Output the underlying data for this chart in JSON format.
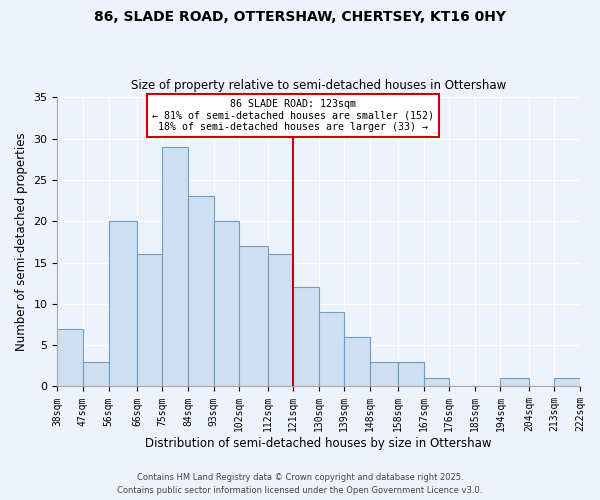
{
  "title": "86, SLADE ROAD, OTTERSHAW, CHERTSEY, KT16 0HY",
  "subtitle": "Size of property relative to semi-detached houses in Ottershaw",
  "xlabel": "Distribution of semi-detached houses by size in Ottershaw",
  "ylabel": "Number of semi-detached properties",
  "bar_edges": [
    38,
    47,
    56,
    66,
    75,
    84,
    93,
    102,
    112,
    121,
    130,
    139,
    148,
    158,
    167,
    176,
    185,
    194,
    204,
    213,
    222
  ],
  "bar_heights": [
    7,
    3,
    20,
    16,
    29,
    23,
    20,
    17,
    16,
    12,
    9,
    6,
    3,
    3,
    1,
    0,
    0,
    1,
    0,
    1
  ],
  "bar_color": "#cfdff0",
  "bar_edge_color": "#6b9ec8",
  "vline_x": 121,
  "vline_color": "#cc0000",
  "annotation_lines": [
    "86 SLADE ROAD: 123sqm",
    "← 81% of semi-detached houses are smaller (152)",
    "18% of semi-detached houses are larger (33) →"
  ],
  "annotation_box_edge": "#cc0000",
  "ylim": [
    0,
    35
  ],
  "yticks": [
    0,
    5,
    10,
    15,
    20,
    25,
    30,
    35
  ],
  "footnote1": "Contains HM Land Registry data © Crown copyright and database right 2025.",
  "footnote2": "Contains public sector information licensed under the Open Government Licence v3.0.",
  "bg_color": "#eef3fb",
  "plot_bg_color": "#eef3fb",
  "grid_color": "#ffffff"
}
